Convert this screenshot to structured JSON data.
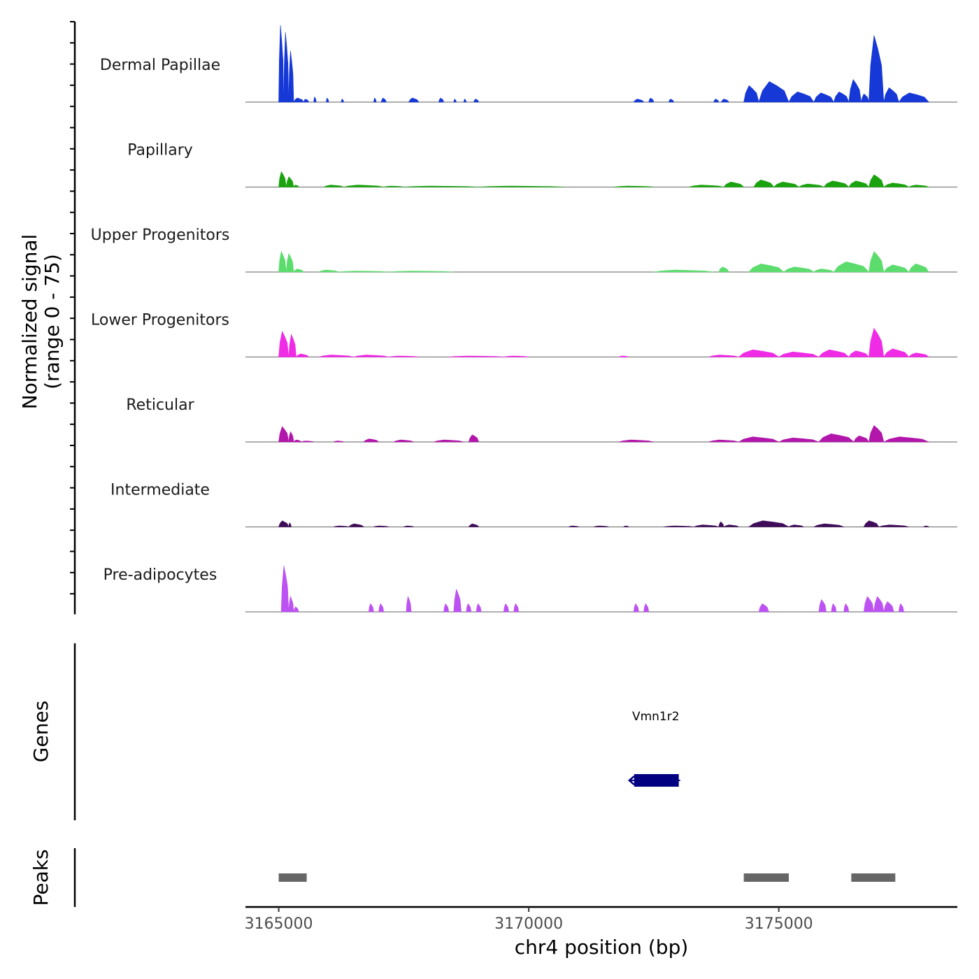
{
  "chart_data": {
    "type": "area",
    "chromosome": "chr4",
    "xlabel": "chr4 position (bp)",
    "ylabel": "Normalized signal",
    "ylabel_range": "(range 0 - 75)",
    "ylim": [
      0,
      75
    ],
    "xlim": [
      3164335,
      3178570
    ],
    "x_ticks": [
      3165000,
      3170000,
      3175000
    ],
    "x_tick_labels": [
      "3165000",
      "3170000",
      "3175000"
    ],
    "coverage_tracks": [
      {
        "name": "Dermal Papillae",
        "color": "#1538d6",
        "peaks": [
          [
            3165000,
            3165100,
            75
          ],
          [
            3165100,
            3165200,
            68
          ],
          [
            3165200,
            3165300,
            50
          ],
          [
            3165300,
            3165500,
            4
          ],
          [
            3165500,
            3165600,
            3
          ],
          [
            3165700,
            3165750,
            5
          ],
          [
            3165950,
            3166000,
            4
          ],
          [
            3166250,
            3166300,
            3
          ],
          [
            3166900,
            3166950,
            4
          ],
          [
            3167050,
            3167150,
            4
          ],
          [
            3167600,
            3167800,
            4
          ],
          [
            3168200,
            3168300,
            4
          ],
          [
            3168500,
            3168550,
            3
          ],
          [
            3168700,
            3168750,
            3
          ],
          [
            3168900,
            3169000,
            3
          ],
          [
            3172100,
            3172300,
            3
          ],
          [
            3172400,
            3172500,
            4
          ],
          [
            3172800,
            3172900,
            3
          ],
          [
            3173700,
            3173800,
            3
          ],
          [
            3173850,
            3174000,
            3
          ],
          [
            3174300,
            3174600,
            16
          ],
          [
            3174600,
            3175200,
            20
          ],
          [
            3175200,
            3175700,
            10
          ],
          [
            3175700,
            3176100,
            9
          ],
          [
            3176100,
            3176400,
            10
          ],
          [
            3176400,
            3176650,
            22
          ],
          [
            3176650,
            3176800,
            8
          ],
          [
            3176800,
            3177100,
            65
          ],
          [
            3177100,
            3177400,
            14
          ],
          [
            3177400,
            3178000,
            9
          ]
        ]
      },
      {
        "name": "Papillary",
        "color": "#1aa30f",
        "peaks": [
          [
            3165000,
            3165150,
            15
          ],
          [
            3165150,
            3165300,
            10
          ],
          [
            3165300,
            3165400,
            2
          ],
          [
            3165900,
            3166300,
            2
          ],
          [
            3166300,
            3167100,
            2
          ],
          [
            3167100,
            3167500,
            1
          ],
          [
            3167500,
            3169000,
            1
          ],
          [
            3169000,
            3170700,
            1
          ],
          [
            3171700,
            3172500,
            1
          ],
          [
            3173200,
            3173900,
            2
          ],
          [
            3173900,
            3174300,
            5
          ],
          [
            3174500,
            3174900,
            7
          ],
          [
            3174900,
            3175400,
            5
          ],
          [
            3175400,
            3175900,
            3
          ],
          [
            3175900,
            3176400,
            6
          ],
          [
            3176400,
            3176800,
            6
          ],
          [
            3176800,
            3177100,
            12
          ],
          [
            3177100,
            3177600,
            4
          ],
          [
            3177600,
            3178000,
            2
          ]
        ]
      },
      {
        "name": "Upper Progenitors",
        "color": "#5ddc6e",
        "peaks": [
          [
            3165000,
            3165150,
            20
          ],
          [
            3165150,
            3165300,
            18
          ],
          [
            3165300,
            3165500,
            3
          ],
          [
            3165800,
            3166200,
            2
          ],
          [
            3166200,
            3167200,
            1
          ],
          [
            3167200,
            3168500,
            1
          ],
          [
            3172500,
            3173700,
            2
          ],
          [
            3173800,
            3174000,
            5
          ],
          [
            3174400,
            3175100,
            8
          ],
          [
            3175100,
            3175700,
            5
          ],
          [
            3175700,
            3176100,
            3
          ],
          [
            3176100,
            3176800,
            10
          ],
          [
            3176800,
            3177100,
            20
          ],
          [
            3177100,
            3177600,
            7
          ],
          [
            3177600,
            3178000,
            8
          ]
        ]
      },
      {
        "name": "Lower Progenitors",
        "color": "#ef2be6",
        "peaks": [
          [
            3165000,
            3165200,
            25
          ],
          [
            3165200,
            3165350,
            22
          ],
          [
            3165350,
            3165600,
            3
          ],
          [
            3165800,
            3166500,
            2
          ],
          [
            3166500,
            3167200,
            2
          ],
          [
            3167200,
            3167800,
            1
          ],
          [
            3168400,
            3169500,
            1
          ],
          [
            3169500,
            3170000,
            1
          ],
          [
            3171800,
            3172000,
            1
          ],
          [
            3173600,
            3174200,
            2
          ],
          [
            3174200,
            3175000,
            7
          ],
          [
            3175000,
            3175800,
            5
          ],
          [
            3175800,
            3176400,
            7
          ],
          [
            3176400,
            3176800,
            6
          ],
          [
            3176800,
            3177100,
            28
          ],
          [
            3177100,
            3177600,
            8
          ],
          [
            3177600,
            3178000,
            4
          ]
        ]
      },
      {
        "name": "Reticular",
        "color": "#b216ab",
        "peaks": [
          [
            3165000,
            3165200,
            15
          ],
          [
            3165200,
            3165300,
            10
          ],
          [
            3165300,
            3165450,
            2
          ],
          [
            3165450,
            3165700,
            1
          ],
          [
            3166100,
            3166300,
            1
          ],
          [
            3166700,
            3167000,
            3
          ],
          [
            3167300,
            3167700,
            2
          ],
          [
            3168100,
            3168700,
            2
          ],
          [
            3168800,
            3169000,
            7
          ],
          [
            3171800,
            3172500,
            2
          ],
          [
            3173600,
            3174200,
            2
          ],
          [
            3174200,
            3175000,
            5
          ],
          [
            3175000,
            3175800,
            4
          ],
          [
            3175800,
            3176500,
            8
          ],
          [
            3176500,
            3176800,
            6
          ],
          [
            3176800,
            3177100,
            16
          ],
          [
            3177100,
            3178000,
            5
          ]
        ]
      },
      {
        "name": "Intermediate",
        "color": "#3f0c5a",
        "peaks": [
          [
            3165000,
            3165200,
            6
          ],
          [
            3165200,
            3165250,
            4
          ],
          [
            3166100,
            3166400,
            1
          ],
          [
            3166400,
            3166700,
            3
          ],
          [
            3166900,
            3167200,
            1
          ],
          [
            3167500,
            3167700,
            1
          ],
          [
            3168800,
            3169000,
            3
          ],
          [
            3170800,
            3171000,
            1
          ],
          [
            3171300,
            3171600,
            1
          ],
          [
            3171900,
            3172000,
            1
          ],
          [
            3172700,
            3173300,
            1
          ],
          [
            3173300,
            3173800,
            2
          ],
          [
            3173800,
            3173900,
            5
          ],
          [
            3173900,
            3174200,
            2
          ],
          [
            3174400,
            3175200,
            6
          ],
          [
            3175200,
            3175500,
            2
          ],
          [
            3175700,
            3176300,
            3
          ],
          [
            3176700,
            3177000,
            6
          ],
          [
            3177000,
            3177600,
            2
          ],
          [
            3177900,
            3178000,
            1
          ]
        ]
      },
      {
        "name": "Pre-adipocytes",
        "color": "#bd52f2",
        "peaks": [
          [
            3165050,
            3165200,
            45
          ],
          [
            3165200,
            3165300,
            15
          ],
          [
            3165300,
            3165400,
            5
          ],
          [
            3166800,
            3166900,
            8
          ],
          [
            3167000,
            3167100,
            8
          ],
          [
            3167550,
            3167650,
            15
          ],
          [
            3168300,
            3168400,
            8
          ],
          [
            3168500,
            3168650,
            22
          ],
          [
            3168750,
            3168850,
            8
          ],
          [
            3168950,
            3169050,
            8
          ],
          [
            3169500,
            3169600,
            8
          ],
          [
            3169700,
            3169800,
            8
          ],
          [
            3172100,
            3172200,
            8
          ],
          [
            3172300,
            3172400,
            8
          ],
          [
            3174600,
            3174800,
            8
          ],
          [
            3175800,
            3175950,
            12
          ],
          [
            3176050,
            3176150,
            8
          ],
          [
            3176300,
            3176400,
            8
          ],
          [
            3176700,
            3176900,
            15
          ],
          [
            3176900,
            3177100,
            15
          ],
          [
            3177100,
            3177300,
            10
          ],
          [
            3177400,
            3177500,
            8
          ]
        ]
      }
    ],
    "gene_track": {
      "label": "Genes",
      "genes": [
        {
          "name": "Vmn1r2",
          "start": 3172080,
          "end": 3173000,
          "strand": "-",
          "color": "#000080"
        }
      ]
    },
    "peak_track": {
      "label": "Peaks",
      "color": "#666666",
      "regions": [
        [
          3165000,
          3165560
        ],
        [
          3174300,
          3175200
        ],
        [
          3176450,
          3177330
        ]
      ]
    }
  }
}
